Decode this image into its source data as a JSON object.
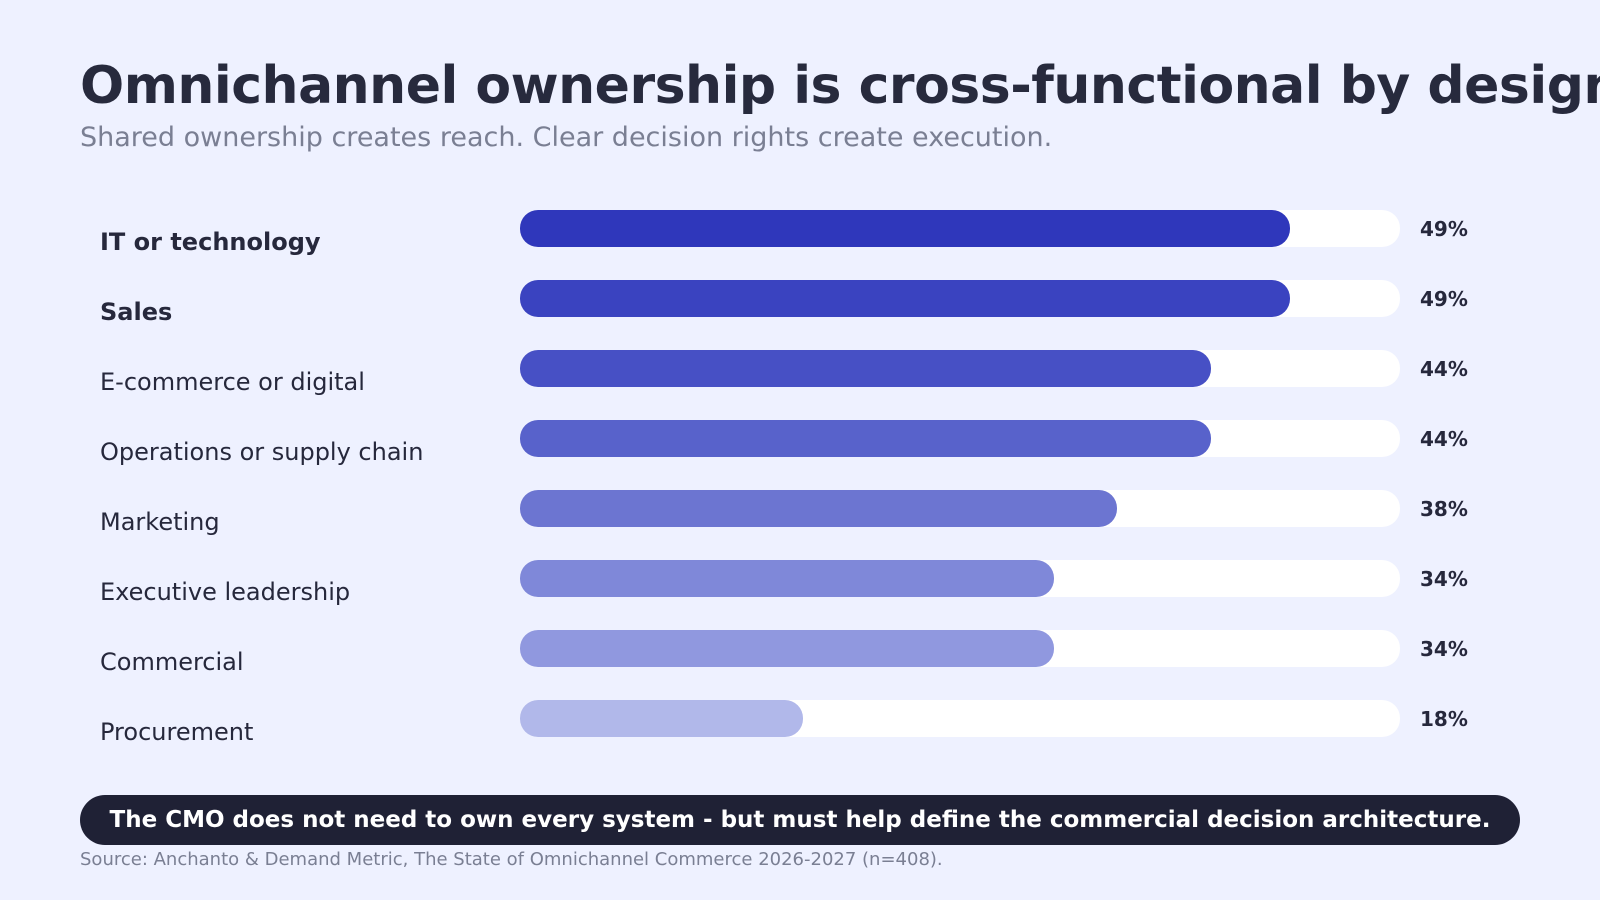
{
  "chart_data": {
    "type": "bar",
    "orientation": "horizontal",
    "title": "Omnichannel ownership is cross-functional by design",
    "subtitle": "Shared ownership creates reach. Clear decision rights create execution.",
    "categories": [
      "IT or technology",
      "Sales",
      "E-commerce or digital",
      "Operations or supply chain",
      "Marketing",
      "Executive leadership",
      "Commercial",
      "Procurement"
    ],
    "values": [
      49,
      49,
      44,
      44,
      38,
      34,
      34,
      18
    ],
    "value_labels": [
      "49%",
      "49%",
      "44%",
      "44%",
      "38%",
      "34%",
      "34%",
      "18%"
    ],
    "emphasized": [
      true,
      true,
      false,
      false,
      false,
      false,
      false,
      false
    ],
    "bar_colors": [
      "#2f37bb",
      "#3a43c0",
      "#4750c5",
      "#5862cb",
      "#6c75d1",
      "#7f88d9",
      "#9098df",
      "#b1b8ea"
    ],
    "track_color": "#ffffff",
    "xlim": [
      0,
      56
    ],
    "grid": false,
    "legend": "none"
  },
  "callout": "The CMO does not need to own every system - but must help define the commercial decision architecture.",
  "source": "Source: Anchanto & Demand Metric, The State of Omnichannel Commerce 2026-2027 (n=408)."
}
